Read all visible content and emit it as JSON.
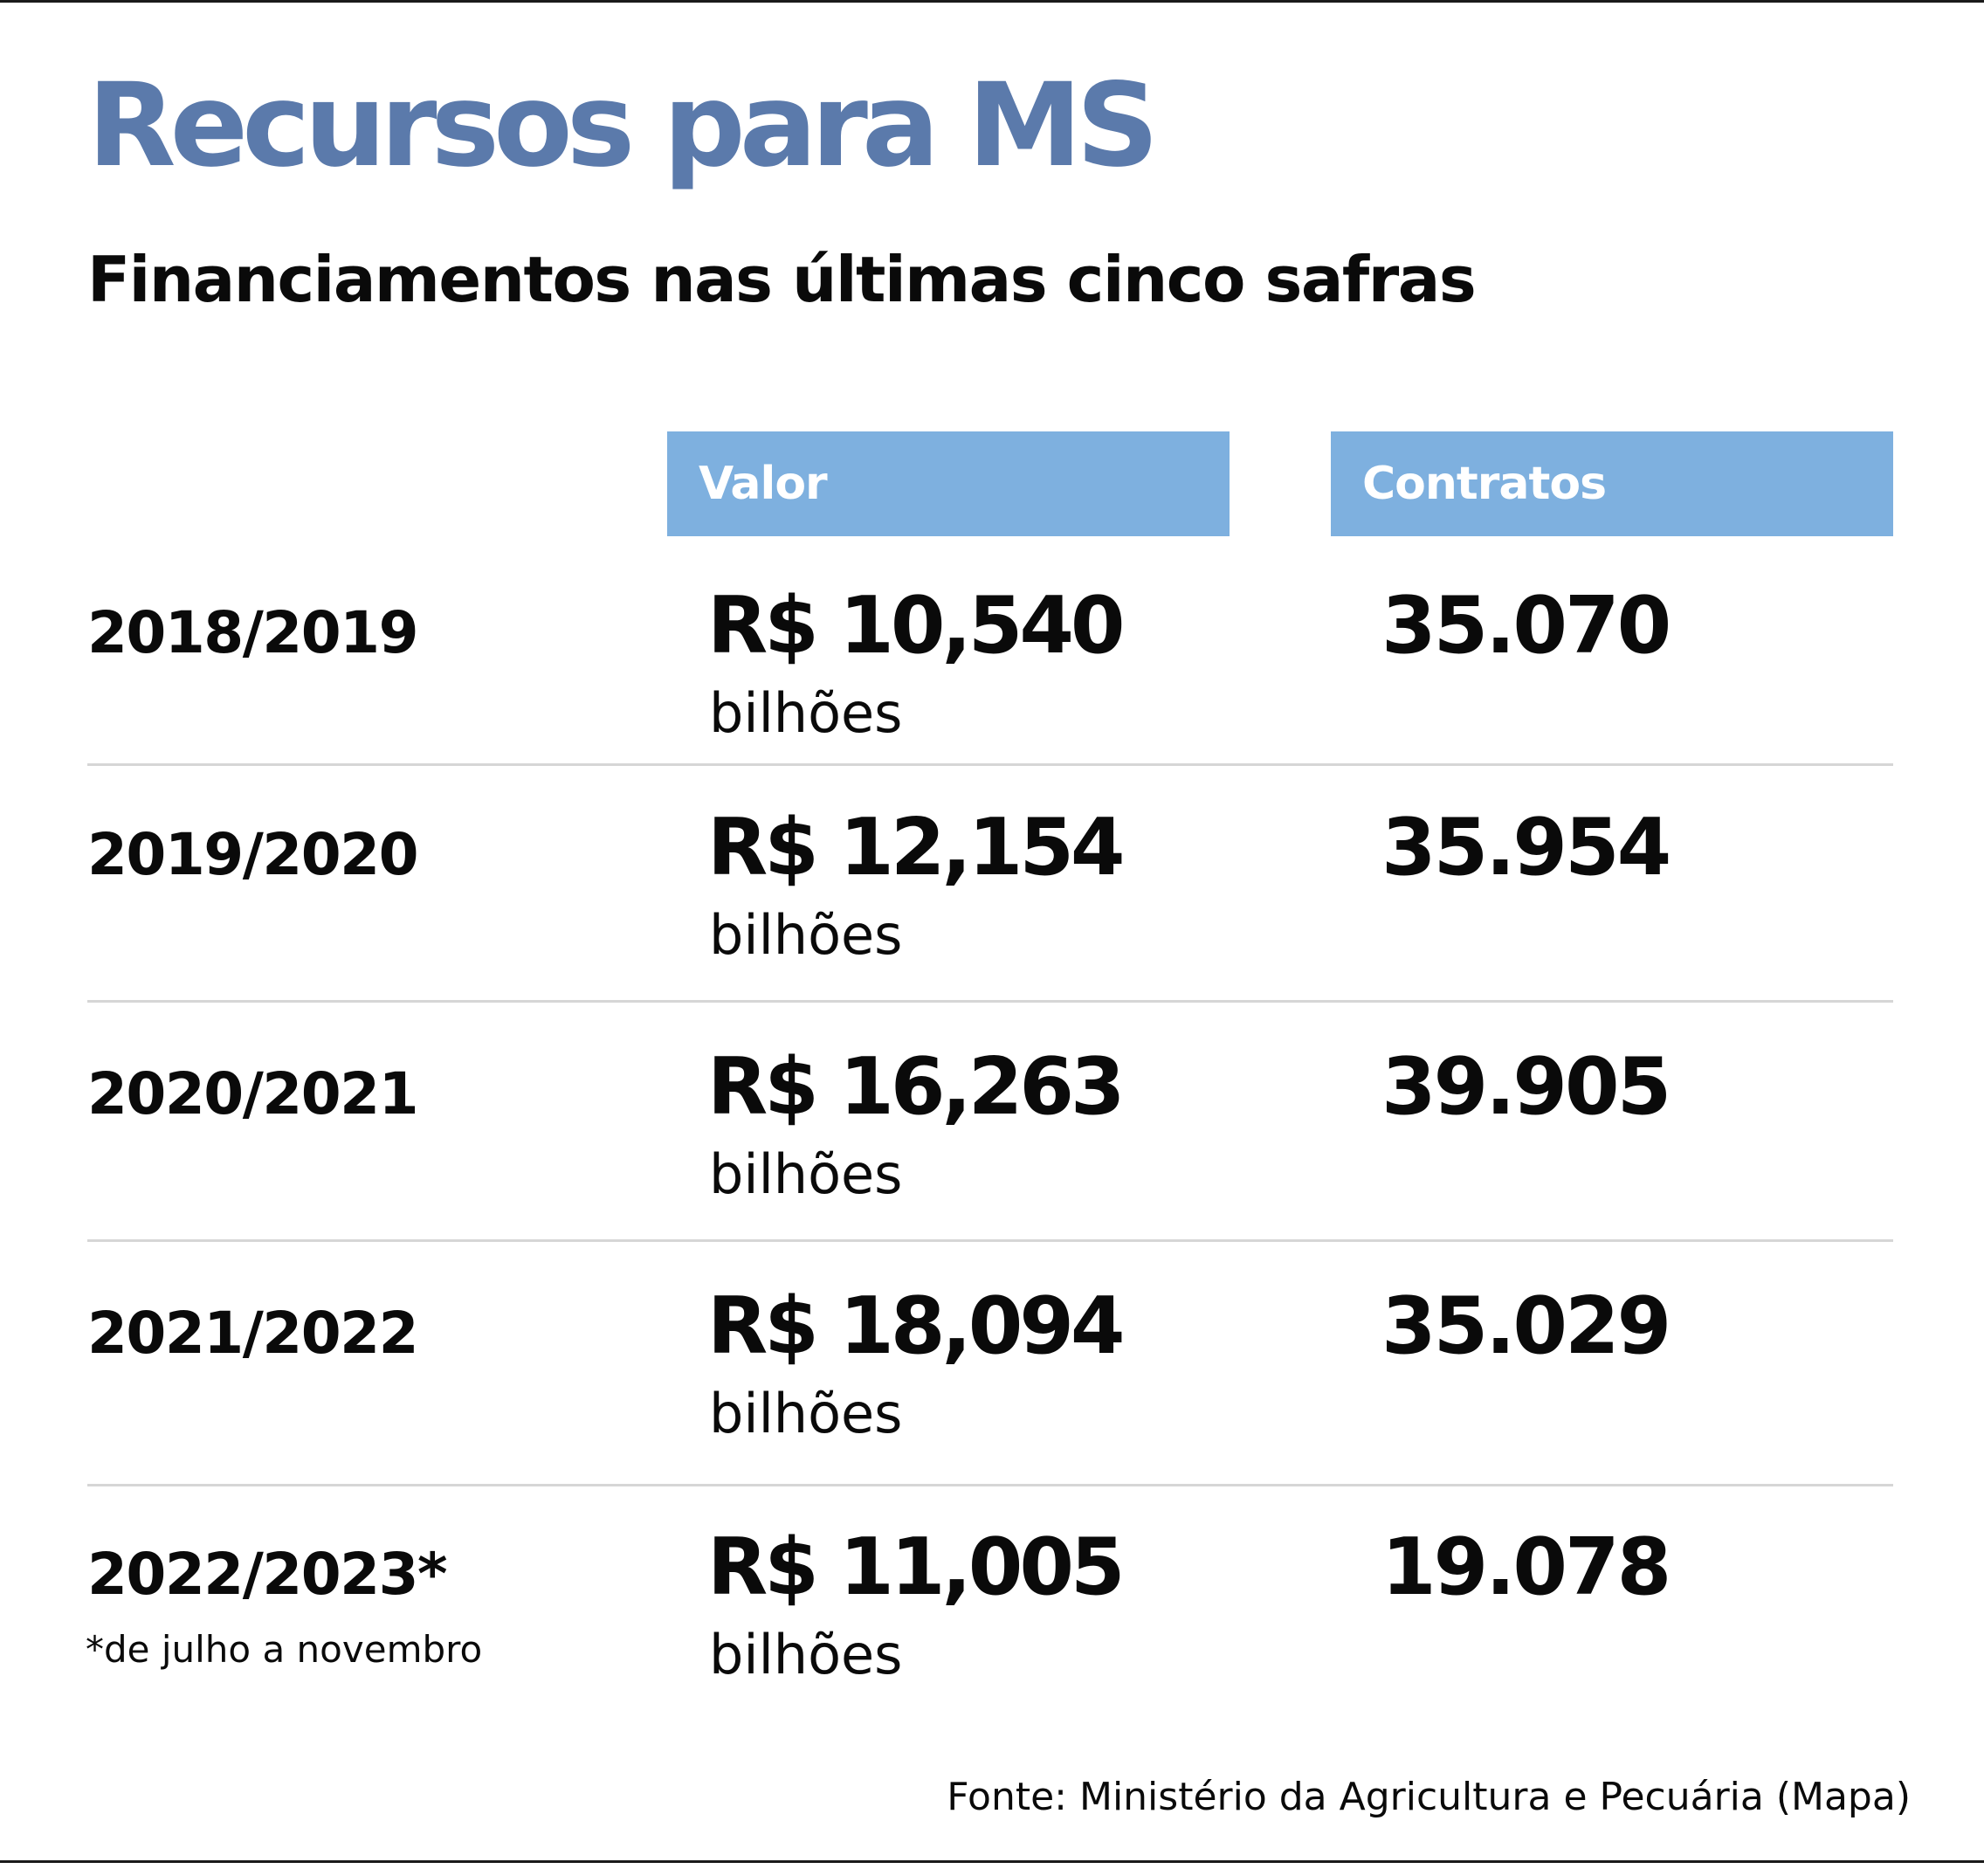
{
  "chart_data": {
    "type": "table",
    "title": "Recursos para MS",
    "subtitle": "Financiamentos nas últimas cinco safras",
    "columns": [
      "Valor",
      "Contratos"
    ],
    "rows": [
      {
        "safra": "2018/2019",
        "valor": "R$ 10,540",
        "valor_bilhoes": 10.54,
        "unidade": "bilhões",
        "contratos": "35.070",
        "contratos_num": 35070
      },
      {
        "safra": "2019/2020",
        "valor": "R$ 12,154",
        "valor_bilhoes": 12.154,
        "unidade": "bilhões",
        "contratos": "35.954",
        "contratos_num": 35954
      },
      {
        "safra": "2020/2021",
        "valor": "R$ 16,263",
        "valor_bilhoes": 16.263,
        "unidade": "bilhões",
        "contratos": "39.905",
        "contratos_num": 39905
      },
      {
        "safra": "2021/2022",
        "valor": "R$ 18,094",
        "valor_bilhoes": 18.094,
        "unidade": "bilhões",
        "contratos": "35.029",
        "contratos_num": 35029
      },
      {
        "safra": "2022/2023*",
        "valor": "R$ 11,005",
        "valor_bilhoes": 11.005,
        "unidade": "bilhões",
        "contratos": "19.078",
        "contratos_num": 19078
      }
    ],
    "footnote": "*de julho a novembro",
    "source": "Fonte: Ministério da Agricultura e Pecuária (Mapa)"
  },
  "colors": {
    "title": "#5b7aab",
    "header_background": "#7eb0df",
    "header_text": "#ffffff",
    "text": "#0a0a0a",
    "row_divider": "#d6d6d6"
  }
}
